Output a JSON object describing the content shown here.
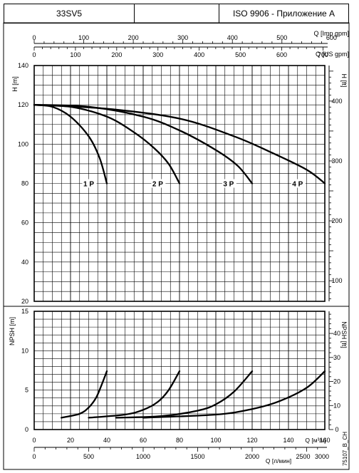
{
  "header": {
    "model": "33SV5",
    "standard": "ISO 9906 - Приложение A"
  },
  "drawing_code": "75107_B_CH",
  "chart_data": [
    {
      "type": "line",
      "title": "",
      "xlabel": "Q [м³/ч]",
      "ylabel": "H [m]",
      "ylabel_right": "H [ft]",
      "xlim": [
        0,
        160
      ],
      "ylim": [
        20,
        140
      ],
      "grid": true,
      "x_ticks": [
        0,
        20,
        40,
        60,
        80,
        100,
        120,
        140,
        160
      ],
      "y_ticks": [
        20,
        40,
        60,
        80,
        100,
        120,
        140
      ],
      "y_right_ticks": [
        100,
        200,
        300,
        400
      ],
      "top_axes": [
        {
          "label": "Q [Imp gpm]",
          "ticks": [
            0,
            100,
            200,
            300,
            400,
            500,
            600
          ]
        },
        {
          "label": "Q [US gpm]",
          "ticks": [
            0,
            100,
            200,
            300,
            400,
            500,
            600,
            700
          ]
        }
      ],
      "series": [
        {
          "name": "1 P",
          "label_at": [
            30,
            80
          ],
          "points": [
            [
              0,
              120
            ],
            [
              10,
              119
            ],
            [
              20,
              114
            ],
            [
              30,
              104
            ],
            [
              36,
              93
            ],
            [
              40,
              80
            ]
          ]
        },
        {
          "name": "2 P",
          "label_at": [
            68,
            80
          ],
          "points": [
            [
              0,
              120
            ],
            [
              20,
              119
            ],
            [
              40,
              114
            ],
            [
              55,
              106
            ],
            [
              66,
              98
            ],
            [
              74,
              90
            ],
            [
              80,
              80
            ]
          ]
        },
        {
          "name": "3 P",
          "label_at": [
            107,
            80
          ],
          "points": [
            [
              0,
              120
            ],
            [
              30,
              119
            ],
            [
              60,
              114
            ],
            [
              80,
              107
            ],
            [
              100,
              97
            ],
            [
              112,
              89
            ],
            [
              120,
              80
            ]
          ]
        },
        {
          "name": "4 P",
          "label_at": [
            145,
            80
          ],
          "points": [
            [
              0,
              120
            ],
            [
              40,
              118
            ],
            [
              80,
              113
            ],
            [
              110,
              104
            ],
            [
              130,
              96
            ],
            [
              150,
              87
            ],
            [
              160,
              80
            ]
          ]
        }
      ]
    },
    {
      "type": "line",
      "title": "",
      "xlabel": "Q [м³/ч]",
      "ylabel": "NPSH [m]",
      "ylabel_right": "NPSH [ft]",
      "xlim": [
        0,
        160
      ],
      "ylim": [
        0,
        15
      ],
      "grid": true,
      "x_ticks": [
        0,
        20,
        40,
        60,
        80,
        100,
        120,
        140,
        160
      ],
      "y_ticks": [
        0,
        5,
        10,
        15
      ],
      "y_right_ticks": [
        0,
        10,
        20,
        30,
        40
      ],
      "bottom_axis2": {
        "label": "Q [л/мин]",
        "ticks": [
          0,
          500,
          1000,
          1500,
          2000,
          2500,
          3000
        ]
      },
      "series": [
        {
          "name": "1 P",
          "points": [
            [
              15,
              1.5
            ],
            [
              25,
              2.0
            ],
            [
              30,
              2.8
            ],
            [
              34,
              4.0
            ],
            [
              37,
              5.6
            ],
            [
              40,
              7.4
            ]
          ]
        },
        {
          "name": "2 P",
          "points": [
            [
              30,
              1.5
            ],
            [
              50,
              1.9
            ],
            [
              60,
              2.5
            ],
            [
              68,
              3.5
            ],
            [
              74,
              5.0
            ],
            [
              80,
              7.4
            ]
          ]
        },
        {
          "name": "3 P",
          "points": [
            [
              45,
              1.5
            ],
            [
              70,
              1.7
            ],
            [
              90,
              2.4
            ],
            [
              100,
              3.2
            ],
            [
              110,
              4.8
            ],
            [
              120,
              7.4
            ]
          ]
        },
        {
          "name": "4 P",
          "points": [
            [
              60,
              1.5
            ],
            [
              100,
              1.9
            ],
            [
              120,
              2.6
            ],
            [
              135,
              3.6
            ],
            [
              150,
              5.3
            ],
            [
              160,
              7.4
            ]
          ]
        }
      ]
    }
  ]
}
